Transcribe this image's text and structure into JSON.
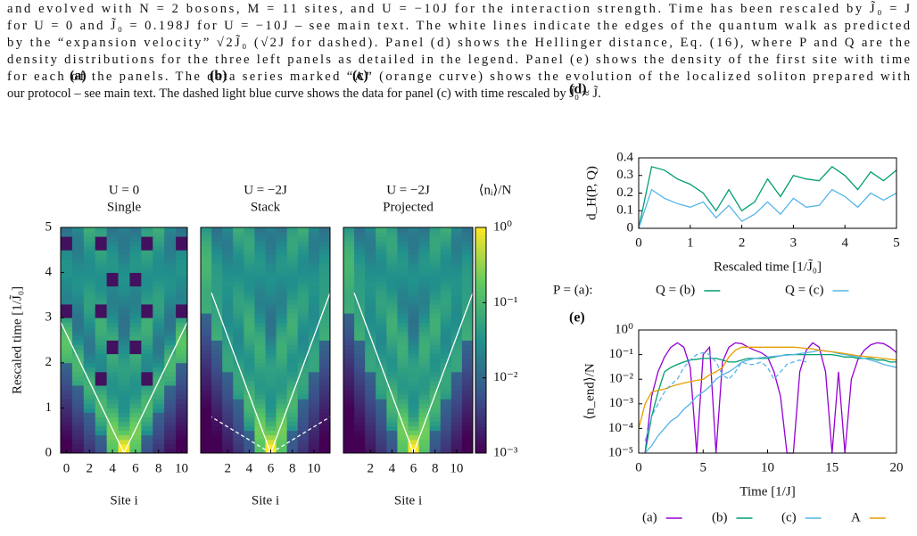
{
  "caption": [
    "and evolved with N = 2 bosons, M = 11 sites, and U = −10J for the interaction strength. Time has been rescaled by J̃₀ = J",
    "for U = 0 and J̃₀ = 0.198J for U = −10J – see main text. The white lines indicate the edges of the quantum walk as predicted",
    "by the “expansion velocity” √2J̃₀ (√2J for dashed). Panel (d) shows the Hellinger distance, Eq. (16), where P and Q are the",
    "density distributions for the three left panels as detailed in the legend. Panel (e) shows the density of the first site with time",
    "for each of the panels. The data series marked “A” (orange curve) shows the evolution of the localized soliton prepared with",
    "our protocol – see main text. The dashed light blue curve shows the data for panel (c) with time rescaled by J̃₀ ≈ J̃."
  ],
  "chart_data": [
    {
      "type": "heatmap",
      "label": "(a)",
      "title": "U = 0",
      "subtitle": "Single",
      "xlabel": "Site i",
      "ylabel": "Rescaled time [1/J̃₀]",
      "xlim": [
        -0.5,
        10.5
      ],
      "xticks": [
        0,
        2,
        4,
        6,
        8,
        10
      ],
      "ylim": [
        0,
        5
      ],
      "yticks": [
        0,
        1,
        2,
        3,
        4,
        5
      ],
      "colormap": "viridis"
    },
    {
      "type": "heatmap",
      "label": "(b)",
      "title": "U = −2J",
      "subtitle": "Stack",
      "xlabel": "Site i",
      "xlim": [
        -0.5,
        11.5
      ],
      "xticks": [
        2,
        4,
        6,
        8,
        10
      ],
      "ylim": [
        0,
        5
      ],
      "colormap": "viridis"
    },
    {
      "type": "heatmap",
      "label": "(c)",
      "title": "U = −2J",
      "subtitle": "Projected",
      "xlabel": "Site i",
      "xlim": [
        -0.5,
        11.5
      ],
      "xticks": [
        2,
        4,
        6,
        8,
        10
      ],
      "ylim": [
        0,
        5
      ],
      "colormap": "viridis"
    },
    {
      "type": "colorbar",
      "label": "⟨nᵢ⟩/N",
      "log": true,
      "ylim": [
        0.001,
        1
      ],
      "colormap": "viridis",
      "yticks": [
        {
          "value": 1,
          "label": "10⁰"
        },
        {
          "value": 0.1,
          "label": "10⁻¹"
        },
        {
          "value": 0.01,
          "label": "10⁻²"
        },
        {
          "value": 0.001,
          "label": "10⁻³"
        }
      ]
    },
    {
      "type": "line",
      "label": "(d)",
      "ylabel": "d_H(P, Q)",
      "xlabel": "Rescaled time [1/J̃₀]",
      "legend_prefix": "P = (a):",
      "xlim": [
        0,
        5
      ],
      "xticks": [
        0,
        1,
        2,
        3,
        4,
        5
      ],
      "ylim": [
        0,
        0.4
      ],
      "yticks": [
        0,
        0.1,
        0.2,
        0.3,
        0.4
      ],
      "x": [
        0,
        0.25,
        0.5,
        0.75,
        1,
        1.25,
        1.5,
        1.75,
        2,
        2.25,
        2.5,
        2.75,
        3,
        3.25,
        3.5,
        3.75,
        4,
        4.25,
        4.5,
        4.75,
        5
      ],
      "series": [
        {
          "name": "Q = (b)",
          "color": "#009e73",
          "values": [
            0,
            0.35,
            0.33,
            0.28,
            0.25,
            0.2,
            0.1,
            0.22,
            0.1,
            0.15,
            0.28,
            0.18,
            0.3,
            0.28,
            0.27,
            0.35,
            0.3,
            0.22,
            0.32,
            0.27,
            0.33
          ]
        },
        {
          "name": "Q = (c)",
          "color": "#56b4e9",
          "values": [
            0,
            0.22,
            0.17,
            0.14,
            0.12,
            0.15,
            0.06,
            0.13,
            0.04,
            0.08,
            0.15,
            0.08,
            0.17,
            0.12,
            0.13,
            0.22,
            0.18,
            0.12,
            0.2,
            0.16,
            0.2
          ]
        }
      ]
    },
    {
      "type": "line",
      "label": "(e)",
      "ylabel": "⟨n_end⟩/N",
      "xlabel": "Time [1/J]",
      "log_y": true,
      "xlim": [
        0,
        20
      ],
      "xticks": [
        0,
        5,
        10,
        15,
        20
      ],
      "ylim": [
        1e-05,
        1
      ],
      "yticks": [
        {
          "value": 1,
          "label": "10⁰"
        },
        {
          "value": 0.1,
          "label": "10⁻¹"
        },
        {
          "value": 0.01,
          "label": "10⁻²"
        },
        {
          "value": 0.001,
          "label": "10⁻³"
        },
        {
          "value": 0.0001,
          "label": "10⁻⁴"
        },
        {
          "value": 1e-05,
          "label": "10⁻⁵"
        }
      ],
      "x": [
        0,
        0.5,
        1,
        1.5,
        2,
        2.5,
        3,
        3.5,
        4,
        4.5,
        5,
        5.5,
        6,
        6.5,
        7,
        7.5,
        8,
        8.5,
        9,
        9.5,
        10,
        10.5,
        11,
        11.5,
        12,
        12.5,
        13,
        13.5,
        14,
        14.5,
        15,
        15.5,
        16,
        16.5,
        17,
        17.5,
        18,
        18.5,
        19,
        19.5,
        20
      ],
      "series": [
        {
          "name": "(a)",
          "color": "#9400d3",
          "values": [
            null,
            1e-05,
            0.002,
            0.02,
            0.08,
            0.2,
            0.3,
            0.2,
            0.03,
            1e-05,
            0.1,
            0.2,
            1e-05,
            0.05,
            0.2,
            0.3,
            0.28,
            0.2,
            0.15,
            0.12,
            0.08,
            0.02,
            0.002,
            1e-05,
            1e-05,
            0.02,
            0.15,
            0.3,
            0.2,
            0.02,
            1e-05,
            0.02,
            1e-05,
            0.01,
            0.06,
            0.15,
            0.25,
            0.3,
            0.28,
            0.2,
            0.12
          ]
        },
        {
          "name": "(b)",
          "color": "#009e73",
          "values": [
            null,
            1e-05,
            0.0003,
            0.003,
            0.02,
            0.03,
            0.04,
            0.05,
            0.06,
            0.065,
            0.07,
            0.07,
            0.07,
            0.06,
            0.05,
            0.05,
            0.06,
            0.07,
            0.07,
            0.07,
            0.07,
            0.08,
            0.09,
            0.1,
            0.1,
            0.1,
            0.1,
            0.1,
            0.1,
            0.1,
            0.1,
            0.09,
            0.08,
            0.08,
            0.07,
            0.07,
            0.07,
            0.06,
            0.06,
            0.05,
            0.05
          ]
        },
        {
          "name": "(c)",
          "color": "#56b4e9",
          "values": [
            null,
            1e-05,
            2e-05,
            5e-05,
            0.0001,
            0.0002,
            0.0003,
            0.0006,
            0.001,
            0.002,
            0.003,
            0.005,
            0.01,
            0.015,
            0.02,
            0.03,
            0.05,
            0.06,
            0.07,
            0.075,
            0.08,
            0.085,
            0.09,
            0.095,
            0.1,
            0.11,
            0.12,
            0.13,
            0.15,
            0.14,
            0.13,
            0.11,
            0.1,
            0.09,
            0.08,
            0.07,
            0.06,
            0.05,
            0.04,
            0.035,
            0.03
          ]
        },
        {
          "name": "A",
          "color": "#e69f00",
          "values": [
            0.0001,
            0.001,
            0.003,
            0.0035,
            0.004,
            0.005,
            0.006,
            0.007,
            0.008,
            0.009,
            0.01,
            0.015,
            0.02,
            0.03,
            0.08,
            0.15,
            0.2,
            0.2,
            0.2,
            0.2,
            0.2,
            0.2,
            0.2,
            0.2,
            0.2,
            0.19,
            0.18,
            0.17,
            0.15,
            0.14,
            0.13,
            0.12,
            0.11,
            0.1,
            0.09,
            0.085,
            0.08,
            0.075,
            0.07,
            0.065,
            0.06
          ]
        },
        {
          "color": "#56b4e9",
          "dashed": true,
          "values": [
            null,
            3e-05,
            0.0003,
            0.001,
            0.003,
            0.006,
            0.01,
            0.03,
            0.06,
            0.1,
            0.12,
            0.1,
            0.05,
            0.015,
            0.01,
            0.02,
            0.05,
            0.04,
            0.04,
            0.05,
            0.03,
            0.01,
            0.02,
            0.04,
            0.05,
            0.06,
            0.05,
            null,
            null,
            null,
            null,
            null,
            null,
            null,
            null,
            null,
            null,
            null,
            null,
            null,
            null
          ]
        }
      ]
    }
  ]
}
